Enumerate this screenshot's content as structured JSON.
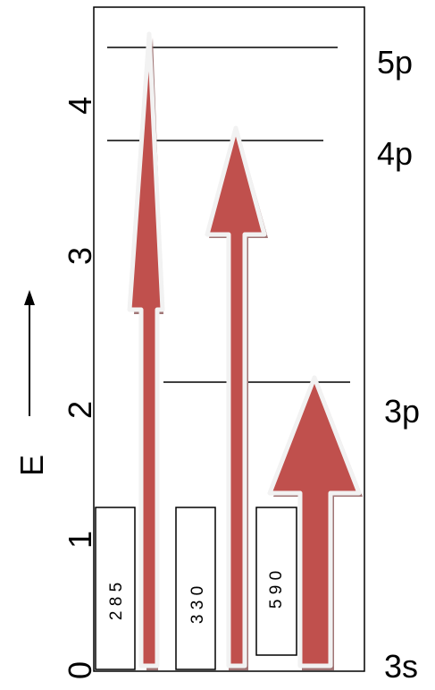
{
  "y_axis": {
    "label": "E",
    "ticks": [
      "0",
      "1",
      "2",
      "3",
      "4"
    ]
  },
  "levels": [
    {
      "label": "3s",
      "energy": 0
    },
    {
      "label": "3p",
      "energy": 2.1
    },
    {
      "label": "4p",
      "energy": 3.79
    },
    {
      "label": "5p",
      "energy": 4.34
    }
  ],
  "transitions": [
    {
      "wavelength": "2 8 5",
      "from": "3s",
      "to": "5p"
    },
    {
      "wavelength": "3 3 0",
      "from": "3s",
      "to": "4p"
    },
    {
      "wavelength": "5 9 0",
      "from": "3s",
      "to": "3p"
    }
  ],
  "colors": {
    "arrow_fill": "#c0504d",
    "arrow_outline": "#f2f2f2",
    "arrow_shadow": "#a07575",
    "line": "#000000"
  }
}
